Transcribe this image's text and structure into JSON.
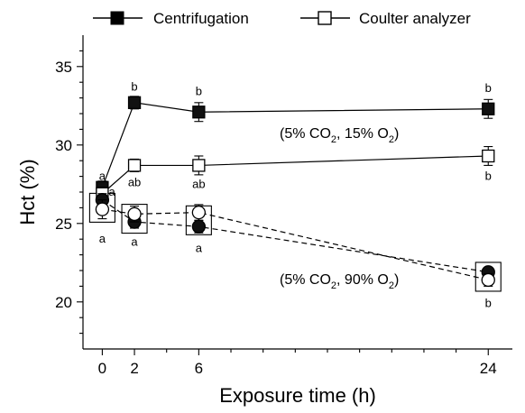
{
  "chart_data": {
    "type": "line",
    "xlabel": "Exposure time (h)",
    "ylabel": "Hct (%)",
    "x_ticks": [
      0,
      2,
      6,
      24
    ],
    "y_ticks": [
      20,
      25,
      30,
      35
    ],
    "xlim": [
      -1.2,
      25.5
    ],
    "ylim": [
      17,
      37
    ],
    "legend": [
      {
        "name": "Centrifugation",
        "marker": "filled-square"
      },
      {
        "name": "Coulter analyzer",
        "marker": "open-square"
      }
    ],
    "legend_position": "top",
    "series": [
      {
        "name": "Centrifugation",
        "condition": "15% O2",
        "marker": "filled-square",
        "line": "solid",
        "x": [
          0,
          2,
          6,
          24
        ],
        "y": [
          27.3,
          32.7,
          32.1,
          32.3
        ],
        "err": [
          0.4,
          0.4,
          0.6,
          0.6
        ]
      },
      {
        "name": "Coulter analyzer",
        "condition": "15% O2",
        "marker": "open-square",
        "line": "solid",
        "x": [
          0,
          2,
          6,
          24
        ],
        "y": [
          26.9,
          28.7,
          28.7,
          29.3
        ],
        "err": [
          0.4,
          0.4,
          0.6,
          0.6
        ]
      },
      {
        "name": "Centrifugation",
        "condition": "90% O2",
        "marker": "filled-circle",
        "line": "dashed",
        "x": [
          0,
          2,
          6,
          24
        ],
        "y": [
          26.5,
          25.1,
          24.8,
          21.9
        ],
        "err": [
          0.4,
          0.4,
          0.4,
          0.3
        ]
      },
      {
        "name": "Coulter analyzer",
        "condition": "90% O2",
        "marker": "open-circle",
        "line": "dashed",
        "x": [
          0,
          2,
          6,
          24
        ],
        "y": [
          25.9,
          25.6,
          25.7,
          21.4
        ],
        "err": [
          0.6,
          0.5,
          0.5,
          0.4
        ]
      }
    ],
    "boxes": [
      {
        "x": 0,
        "y": 26.0
      },
      {
        "x": 2,
        "y": 25.3
      },
      {
        "x": 6,
        "y": 25.2
      },
      {
        "x": 24,
        "y": 21.6
      }
    ],
    "significance_labels": [
      {
        "text": "a",
        "x": 0,
        "y": 28.0
      },
      {
        "text": "a",
        "x": 0.6,
        "y": 27.0
      },
      {
        "text": "a",
        "x": 0,
        "y": 24.0
      },
      {
        "text": "b",
        "x": 2,
        "y": 33.7
      },
      {
        "text": "ab",
        "x": 2,
        "y": 27.6
      },
      {
        "text": "a",
        "x": 2,
        "y": 23.8
      },
      {
        "text": "b",
        "x": 6,
        "y": 33.4
      },
      {
        "text": "ab",
        "x": 6,
        "y": 27.5
      },
      {
        "text": "a",
        "x": 6,
        "y": 23.4
      },
      {
        "text": "b",
        "x": 24,
        "y": 33.6
      },
      {
        "text": "b",
        "x": 24,
        "y": 28.0
      },
      {
        "text": "b",
        "x": 24,
        "y": 19.9
      }
    ],
    "annotations": {
      "cond_15": {
        "pre": "(5% CO",
        "sub1": "2",
        "mid": ", 15% O",
        "sub2": "2",
        "post": ")"
      },
      "cond_90": {
        "pre": "(5% CO",
        "sub1": "2",
        "mid": ", 90% O",
        "sub2": "2",
        "post": ")"
      }
    }
  }
}
